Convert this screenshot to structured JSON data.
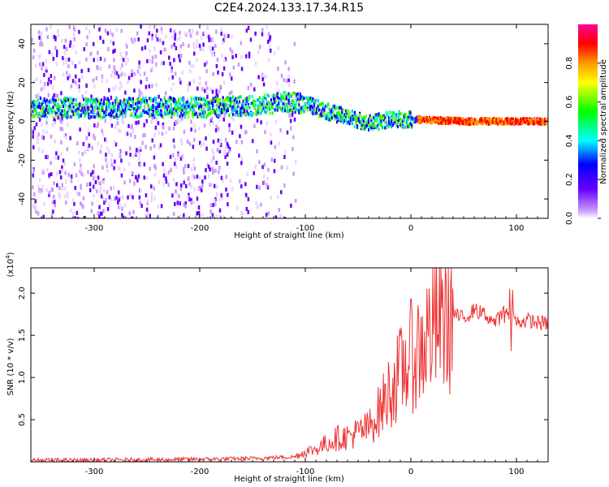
{
  "title": "C2E4.2024.133.17.34.R15",
  "chart_data": [
    {
      "type": "heatmap",
      "xlabel": "Height of straight line (km)",
      "ylabel": "Frequency (Hz)",
      "xlim": [
        -360,
        130
      ],
      "ylim": [
        -50,
        50
      ],
      "x_ticks": [
        -300,
        -200,
        -100,
        0,
        100
      ],
      "y_ticks": [
        40,
        20,
        0,
        -20,
        -40
      ],
      "colorbar": {
        "label": "Normalized spectral amplitude",
        "range": [
          0,
          1
        ],
        "ticks": [
          "0.0",
          "0.2",
          "0.4",
          "0.6",
          "0.8"
        ],
        "colors": [
          "#ffffff",
          "#cc99ff",
          "#6600ff",
          "#0000ff",
          "#00ffff",
          "#00ff00",
          "#ffff00",
          "#ff9900",
          "#ff0000",
          "#ff0099"
        ]
      },
      "ridge": {
        "x": [
          -360,
          -300,
          -200,
          -150,
          -120,
          -100,
          -80,
          -60,
          -40,
          -20,
          0,
          50,
          100,
          130
        ],
        "y": [
          7,
          7,
          7,
          8,
          10,
          9,
          5,
          2,
          -1,
          1,
          1,
          0,
          0,
          0
        ]
      }
    },
    {
      "type": "line",
      "xlabel": "Height of straight line (km)",
      "ylabel": "SNR (10 * v/v)",
      "y_multiplier": "(x10",
      "y_multiplier_exp": "4",
      "y_multiplier_close": ")",
      "xlim": [
        -360,
        130
      ],
      "ylim": [
        0,
        23000
      ],
      "x_ticks": [
        -300,
        -200,
        -100,
        0,
        100
      ],
      "y_ticks": [
        "0.5",
        "1.0",
        "1.5",
        "2.0"
      ],
      "series": [
        {
          "color": "#ee3333",
          "x": [
            -360,
            -300,
            -200,
            -150,
            -110,
            -100,
            -90,
            -80,
            -70,
            -60,
            -50,
            -40,
            -30,
            -20,
            -10,
            0,
            10,
            20,
            30,
            40,
            50,
            60,
            70,
            80,
            90,
            100,
            110,
            120,
            130
          ],
          "y": [
            200,
            200,
            300,
            400,
            600,
            1200,
            1500,
            2200,
            2800,
            3000,
            3500,
            4000,
            6000,
            8500,
            10500,
            12500,
            13500,
            16000,
            17000,
            17500,
            17000,
            18000,
            17500,
            16500,
            18000,
            16500,
            16800,
            16500,
            16400
          ]
        }
      ]
    }
  ]
}
